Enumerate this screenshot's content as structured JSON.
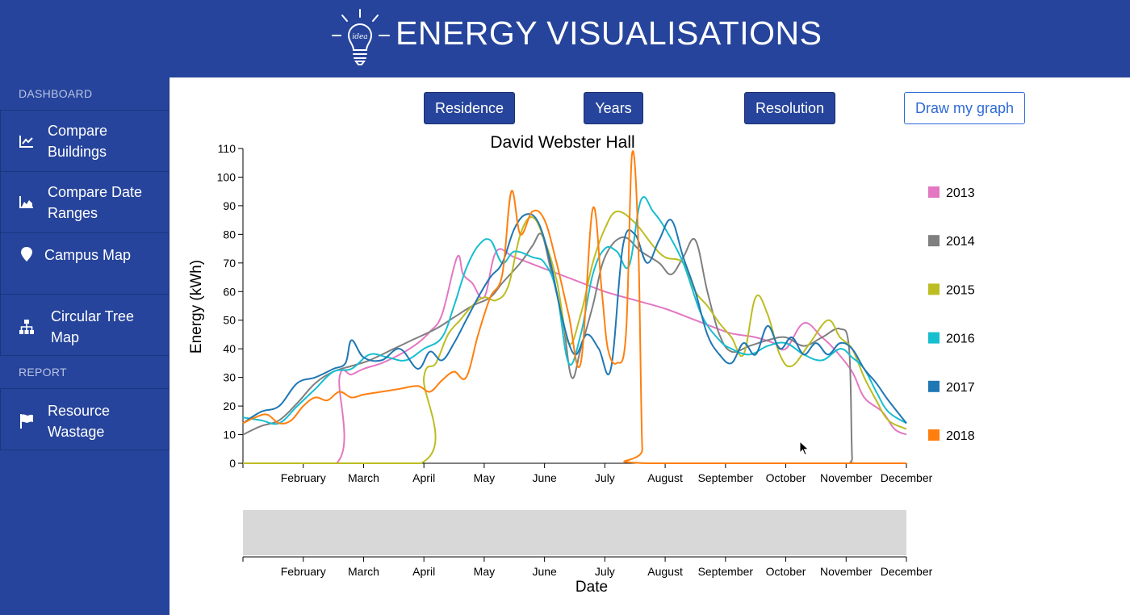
{
  "app": {
    "title": "ENERGY VISUALISATIONS",
    "logo_text": "idea",
    "brand_color": "#26449b"
  },
  "sidebar": {
    "sections": [
      {
        "label": "DASHBOARD",
        "items": [
          {
            "label_lines": [
              "Compare",
              "Buildings"
            ],
            "icon": "line-chart-icon"
          },
          {
            "label_lines": [
              "Compare Date",
              "Ranges"
            ],
            "icon": "area-chart-icon"
          },
          {
            "label_lines": [
              "Campus Map"
            ],
            "icon": "map-marker-icon"
          },
          {
            "label_lines": [
              "Circular Tree",
              "Map"
            ],
            "icon": "sitemap-icon"
          }
        ]
      },
      {
        "label": "REPORT",
        "items": [
          {
            "label_lines": [
              "Resource",
              "Wastage"
            ],
            "icon": "flag-icon"
          }
        ]
      }
    ]
  },
  "toolbar": {
    "residence_label": "Residence",
    "years_label": "Years",
    "resolution_label": "Resolution",
    "draw_label": "Draw my graph"
  },
  "chart_data": {
    "type": "line",
    "title": "David Webster Hall",
    "ylabel": "Energy (kWh)",
    "xlabel": "Date",
    "ylim": [
      0,
      110
    ],
    "y_ticks": [
      0,
      10,
      20,
      30,
      40,
      50,
      60,
      70,
      80,
      90,
      100,
      110
    ],
    "x_ticks": [
      "February",
      "March",
      "April",
      "May",
      "June",
      "July",
      "August",
      "September",
      "October",
      "November",
      "December"
    ],
    "legend_position": "right",
    "grid": false,
    "x_domain_months": [
      1,
      12
    ],
    "series": [
      {
        "name": "2013",
        "color": "#e377c2",
        "points": [
          [
            1.0,
            0
          ],
          [
            2.55,
            0
          ],
          [
            2.6,
            30
          ],
          [
            2.8,
            31
          ],
          [
            3.0,
            33
          ],
          [
            3.3,
            35
          ],
          [
            3.6,
            38
          ],
          [
            3.9,
            42
          ],
          [
            4.1,
            46
          ],
          [
            4.3,
            52
          ],
          [
            4.55,
            72
          ],
          [
            4.65,
            66
          ],
          [
            4.8,
            63
          ],
          [
            5.0,
            58
          ],
          [
            5.2,
            74
          ],
          [
            5.5,
            72
          ],
          [
            6.0,
            68
          ],
          [
            6.5,
            64
          ],
          [
            7.0,
            60
          ],
          [
            7.5,
            57
          ],
          [
            8.0,
            54
          ],
          [
            8.5,
            50
          ],
          [
            9.0,
            46
          ],
          [
            9.2,
            45
          ],
          [
            9.5,
            44
          ],
          [
            9.8,
            42
          ],
          [
            10.0,
            40
          ],
          [
            10.3,
            49
          ],
          [
            10.6,
            44
          ],
          [
            10.8,
            40
          ],
          [
            11.1,
            32
          ],
          [
            11.3,
            23
          ],
          [
            11.6,
            18
          ],
          [
            11.8,
            12
          ],
          [
            12.0,
            10
          ]
        ]
      },
      {
        "name": "2014",
        "color": "#7f7f7f",
        "points": [
          [
            1.0,
            10
          ],
          [
            1.3,
            13
          ],
          [
            1.6,
            15
          ],
          [
            1.9,
            21
          ],
          [
            2.2,
            28
          ],
          [
            2.5,
            32
          ],
          [
            2.8,
            34
          ],
          [
            3.1,
            36
          ],
          [
            3.5,
            40
          ],
          [
            3.8,
            43
          ],
          [
            4.2,
            47
          ],
          [
            4.5,
            51
          ],
          [
            4.8,
            55
          ],
          [
            5.1,
            58
          ],
          [
            5.3,
            63
          ],
          [
            5.6,
            70
          ],
          [
            5.8,
            76
          ],
          [
            5.95,
            80
          ],
          [
            6.1,
            68
          ],
          [
            6.3,
            50
          ],
          [
            6.45,
            30
          ],
          [
            6.6,
            40
          ],
          [
            6.8,
            55
          ],
          [
            7.0,
            72
          ],
          [
            7.3,
            79
          ],
          [
            7.6,
            74
          ],
          [
            7.9,
            70
          ],
          [
            8.1,
            66
          ],
          [
            8.3,
            72
          ],
          [
            8.5,
            78
          ],
          [
            8.7,
            60
          ],
          [
            8.9,
            45
          ],
          [
            9.1,
            39
          ],
          [
            9.4,
            41
          ],
          [
            9.7,
            43
          ],
          [
            10.0,
            44
          ],
          [
            10.3,
            41
          ],
          [
            10.6,
            44
          ],
          [
            10.9,
            47
          ],
          [
            11.05,
            40
          ],
          [
            11.1,
            2
          ],
          [
            11.15,
            0
          ],
          [
            12.0,
            0
          ]
        ]
      },
      {
        "name": "2015",
        "color": "#bcbd22",
        "points": [
          [
            1.0,
            0
          ],
          [
            3.95,
            0
          ],
          [
            4.0,
            30
          ],
          [
            4.2,
            35
          ],
          [
            4.4,
            45
          ],
          [
            4.6,
            50
          ],
          [
            4.8,
            55
          ],
          [
            5.0,
            58
          ],
          [
            5.2,
            57
          ],
          [
            5.4,
            62
          ],
          [
            5.6,
            80
          ],
          [
            5.8,
            86
          ],
          [
            6.0,
            78
          ],
          [
            6.2,
            64
          ],
          [
            6.4,
            42
          ],
          [
            6.6,
            52
          ],
          [
            6.8,
            70
          ],
          [
            7.0,
            82
          ],
          [
            7.2,
            88
          ],
          [
            7.5,
            84
          ],
          [
            7.8,
            76
          ],
          [
            8.0,
            72
          ],
          [
            8.3,
            70
          ],
          [
            8.5,
            60
          ],
          [
            8.7,
            55
          ],
          [
            8.9,
            49
          ],
          [
            9.1,
            44
          ],
          [
            9.3,
            38
          ],
          [
            9.5,
            58
          ],
          [
            9.7,
            52
          ],
          [
            9.9,
            38
          ],
          [
            10.1,
            34
          ],
          [
            10.4,
            42
          ],
          [
            10.7,
            50
          ],
          [
            10.9,
            44
          ],
          [
            11.1,
            40
          ],
          [
            11.3,
            30
          ],
          [
            11.5,
            22
          ],
          [
            11.7,
            15
          ],
          [
            12.0,
            12
          ]
        ]
      },
      {
        "name": "2016",
        "color": "#17becf",
        "points": [
          [
            1.0,
            16
          ],
          [
            1.3,
            15
          ],
          [
            1.6,
            14
          ],
          [
            1.9,
            20
          ],
          [
            2.2,
            26
          ],
          [
            2.5,
            32
          ],
          [
            2.8,
            33
          ],
          [
            3.1,
            38
          ],
          [
            3.4,
            37
          ],
          [
            3.7,
            36
          ],
          [
            4.0,
            40
          ],
          [
            4.3,
            44
          ],
          [
            4.5,
            55
          ],
          [
            4.7,
            68
          ],
          [
            4.9,
            76
          ],
          [
            5.1,
            78
          ],
          [
            5.3,
            70
          ],
          [
            5.5,
            74
          ],
          [
            5.8,
            72
          ],
          [
            6.0,
            70
          ],
          [
            6.2,
            60
          ],
          [
            6.4,
            35
          ],
          [
            6.6,
            45
          ],
          [
            6.8,
            66
          ],
          [
            7.0,
            75
          ],
          [
            7.2,
            74
          ],
          [
            7.4,
            69
          ],
          [
            7.6,
            92
          ],
          [
            7.8,
            88
          ],
          [
            8.0,
            82
          ],
          [
            8.3,
            70
          ],
          [
            8.6,
            52
          ],
          [
            8.9,
            43
          ],
          [
            9.1,
            40
          ],
          [
            9.4,
            38
          ],
          [
            9.7,
            41
          ],
          [
            10.0,
            42
          ],
          [
            10.3,
            38
          ],
          [
            10.6,
            36
          ],
          [
            10.9,
            40
          ],
          [
            11.1,
            37
          ],
          [
            11.3,
            33
          ],
          [
            11.5,
            25
          ],
          [
            11.7,
            18
          ],
          [
            12.0,
            14
          ]
        ]
      },
      {
        "name": "2017",
        "color": "#1f77b4",
        "points": [
          [
            1.0,
            14
          ],
          [
            1.3,
            18
          ],
          [
            1.6,
            20
          ],
          [
            1.9,
            28
          ],
          [
            2.2,
            30
          ],
          [
            2.5,
            33
          ],
          [
            2.7,
            35
          ],
          [
            2.8,
            43
          ],
          [
            3.0,
            37
          ],
          [
            3.3,
            36
          ],
          [
            3.6,
            40
          ],
          [
            3.9,
            33
          ],
          [
            4.1,
            39
          ],
          [
            4.3,
            36
          ],
          [
            4.5,
            42
          ],
          [
            4.7,
            50
          ],
          [
            4.9,
            58
          ],
          [
            5.1,
            65
          ],
          [
            5.3,
            70
          ],
          [
            5.5,
            82
          ],
          [
            5.7,
            87
          ],
          [
            5.9,
            84
          ],
          [
            6.1,
            70
          ],
          [
            6.3,
            50
          ],
          [
            6.5,
            38
          ],
          [
            6.7,
            45
          ],
          [
            6.9,
            40
          ],
          [
            7.1,
            33
          ],
          [
            7.3,
            76
          ],
          [
            7.5,
            80
          ],
          [
            7.7,
            70
          ],
          [
            7.9,
            78
          ],
          [
            8.1,
            85
          ],
          [
            8.3,
            72
          ],
          [
            8.5,
            60
          ],
          [
            8.7,
            45
          ],
          [
            8.9,
            38
          ],
          [
            9.1,
            35
          ],
          [
            9.3,
            42
          ],
          [
            9.5,
            38
          ],
          [
            9.7,
            48
          ],
          [
            9.9,
            40
          ],
          [
            10.1,
            44
          ],
          [
            10.3,
            38
          ],
          [
            10.5,
            42
          ],
          [
            10.7,
            38
          ],
          [
            10.9,
            42
          ],
          [
            11.1,
            40
          ],
          [
            11.3,
            33
          ],
          [
            11.5,
            28
          ],
          [
            11.7,
            22
          ],
          [
            12.0,
            14
          ]
        ]
      },
      {
        "name": "2018",
        "color": "#ff7f0e",
        "points": [
          [
            1.0,
            14
          ],
          [
            1.2,
            16
          ],
          [
            1.4,
            17
          ],
          [
            1.6,
            14
          ],
          [
            1.8,
            15
          ],
          [
            2.0,
            20
          ],
          [
            2.2,
            23
          ],
          [
            2.4,
            22
          ],
          [
            2.6,
            25
          ],
          [
            2.8,
            23
          ],
          [
            3.0,
            24
          ],
          [
            3.3,
            25
          ],
          [
            3.6,
            26
          ],
          [
            3.9,
            27
          ],
          [
            4.1,
            25
          ],
          [
            4.3,
            29
          ],
          [
            4.5,
            32
          ],
          [
            4.7,
            30
          ],
          [
            4.9,
            45
          ],
          [
            5.1,
            58
          ],
          [
            5.3,
            66
          ],
          [
            5.45,
            95
          ],
          [
            5.6,
            80
          ],
          [
            5.8,
            88
          ],
          [
            6.0,
            85
          ],
          [
            6.2,
            70
          ],
          [
            6.4,
            52
          ],
          [
            6.6,
            35
          ],
          [
            6.8,
            89
          ],
          [
            6.95,
            60
          ],
          [
            7.05,
            40
          ],
          [
            7.2,
            35
          ],
          [
            7.35,
            45
          ],
          [
            7.45,
            108
          ],
          [
            7.55,
            80
          ],
          [
            7.62,
            5
          ],
          [
            7.68,
            0
          ],
          [
            12.0,
            0
          ]
        ]
      }
    ]
  }
}
